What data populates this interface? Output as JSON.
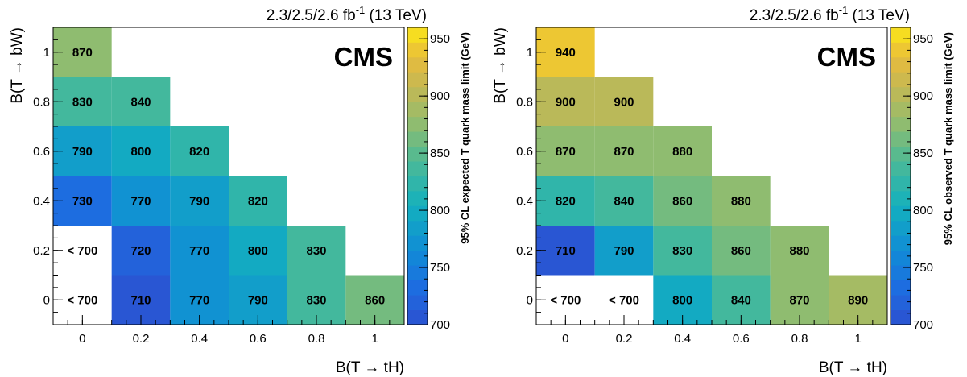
{
  "chart_data": [
    {
      "type": "heatmap",
      "lumi_label": "2.3/2.5/2.6 fb",
      "lumi_exp": "-1",
      "lumi_suffix": " (13 TeV)",
      "brand": "CMS",
      "xlabel": "B(T → tH)",
      "ylabel": "B(T → bW)",
      "zlabel": "95% CL expected T quark mass limit (GeV)",
      "x_ticks": [
        "0",
        "0.2",
        "0.4",
        "0.6",
        "0.8",
        "1"
      ],
      "y_ticks": [
        "0",
        "0.2",
        "0.4",
        "0.6",
        "0.8",
        "1"
      ],
      "z_ticks": [
        "700",
        "750",
        "800",
        "850",
        "900",
        "950"
      ],
      "xlim": [
        -0.1,
        1.1
      ],
      "ylim": [
        -0.1,
        1.1
      ],
      "zlim": [
        700,
        960
      ],
      "cells": [
        {
          "x": 0,
          "y": 0,
          "value": null,
          "label": "< 700"
        },
        {
          "x": 0.2,
          "y": 0,
          "value": 710,
          "label": "710"
        },
        {
          "x": 0.4,
          "y": 0,
          "value": 770,
          "label": "770"
        },
        {
          "x": 0.6,
          "y": 0,
          "value": 790,
          "label": "790"
        },
        {
          "x": 0.8,
          "y": 0,
          "value": 830,
          "label": "830"
        },
        {
          "x": 1,
          "y": 0,
          "value": 860,
          "label": "860"
        },
        {
          "x": 0,
          "y": 0.2,
          "value": null,
          "label": "< 700"
        },
        {
          "x": 0.2,
          "y": 0.2,
          "value": 720,
          "label": "720"
        },
        {
          "x": 0.4,
          "y": 0.2,
          "value": 770,
          "label": "770"
        },
        {
          "x": 0.6,
          "y": 0.2,
          "value": 800,
          "label": "800"
        },
        {
          "x": 0.8,
          "y": 0.2,
          "value": 830,
          "label": "830"
        },
        {
          "x": 0,
          "y": 0.4,
          "value": 730,
          "label": "730"
        },
        {
          "x": 0.2,
          "y": 0.4,
          "value": 770,
          "label": "770"
        },
        {
          "x": 0.4,
          "y": 0.4,
          "value": 790,
          "label": "790"
        },
        {
          "x": 0.6,
          "y": 0.4,
          "value": 820,
          "label": "820"
        },
        {
          "x": 0,
          "y": 0.6,
          "value": 790,
          "label": "790"
        },
        {
          "x": 0.2,
          "y": 0.6,
          "value": 800,
          "label": "800"
        },
        {
          "x": 0.4,
          "y": 0.6,
          "value": 820,
          "label": "820"
        },
        {
          "x": 0,
          "y": 0.8,
          "value": 830,
          "label": "830"
        },
        {
          "x": 0.2,
          "y": 0.8,
          "value": 840,
          "label": "840"
        },
        {
          "x": 0,
          "y": 1,
          "value": 870,
          "label": "870"
        }
      ]
    },
    {
      "type": "heatmap",
      "lumi_label": "2.3/2.5/2.6 fb",
      "lumi_exp": "-1",
      "lumi_suffix": " (13 TeV)",
      "brand": "CMS",
      "xlabel": "B(T → tH)",
      "ylabel": "B(T → bW)",
      "zlabel": "95% CL observed T quark mass limit (GeV)",
      "x_ticks": [
        "0",
        "0.2",
        "0.4",
        "0.6",
        "0.8",
        "1"
      ],
      "y_ticks": [
        "0",
        "0.2",
        "0.4",
        "0.6",
        "0.8",
        "1"
      ],
      "z_ticks": [
        "700",
        "750",
        "800",
        "850",
        "900",
        "950"
      ],
      "xlim": [
        -0.1,
        1.1
      ],
      "ylim": [
        -0.1,
        1.1
      ],
      "zlim": [
        700,
        960
      ],
      "cells": [
        {
          "x": 0,
          "y": 0,
          "value": null,
          "label": "< 700"
        },
        {
          "x": 0.2,
          "y": 0,
          "value": null,
          "label": "< 700"
        },
        {
          "x": 0.4,
          "y": 0,
          "value": 800,
          "label": "800"
        },
        {
          "x": 0.6,
          "y": 0,
          "value": 840,
          "label": "840"
        },
        {
          "x": 0.8,
          "y": 0,
          "value": 870,
          "label": "870"
        },
        {
          "x": 1,
          "y": 0,
          "value": 890,
          "label": "890"
        },
        {
          "x": 0,
          "y": 0.2,
          "value": 710,
          "label": "710"
        },
        {
          "x": 0.2,
          "y": 0.2,
          "value": 790,
          "label": "790"
        },
        {
          "x": 0.4,
          "y": 0.2,
          "value": 830,
          "label": "830"
        },
        {
          "x": 0.6,
          "y": 0.2,
          "value": 860,
          "label": "860"
        },
        {
          "x": 0.8,
          "y": 0.2,
          "value": 880,
          "label": "880"
        },
        {
          "x": 0,
          "y": 0.4,
          "value": 820,
          "label": "820"
        },
        {
          "x": 0.2,
          "y": 0.4,
          "value": 840,
          "label": "840"
        },
        {
          "x": 0.4,
          "y": 0.4,
          "value": 860,
          "label": "860"
        },
        {
          "x": 0.6,
          "y": 0.4,
          "value": 880,
          "label": "880"
        },
        {
          "x": 0,
          "y": 0.6,
          "value": 870,
          "label": "870"
        },
        {
          "x": 0.2,
          "y": 0.6,
          "value": 870,
          "label": "870"
        },
        {
          "x": 0.4,
          "y": 0.6,
          "value": 880,
          "label": "880"
        },
        {
          "x": 0,
          "y": 0.8,
          "value": 900,
          "label": "900"
        },
        {
          "x": 0.2,
          "y": 0.8,
          "value": 900,
          "label": "900"
        },
        {
          "x": 0,
          "y": 1,
          "value": 940,
          "label": "940"
        }
      ]
    }
  ]
}
